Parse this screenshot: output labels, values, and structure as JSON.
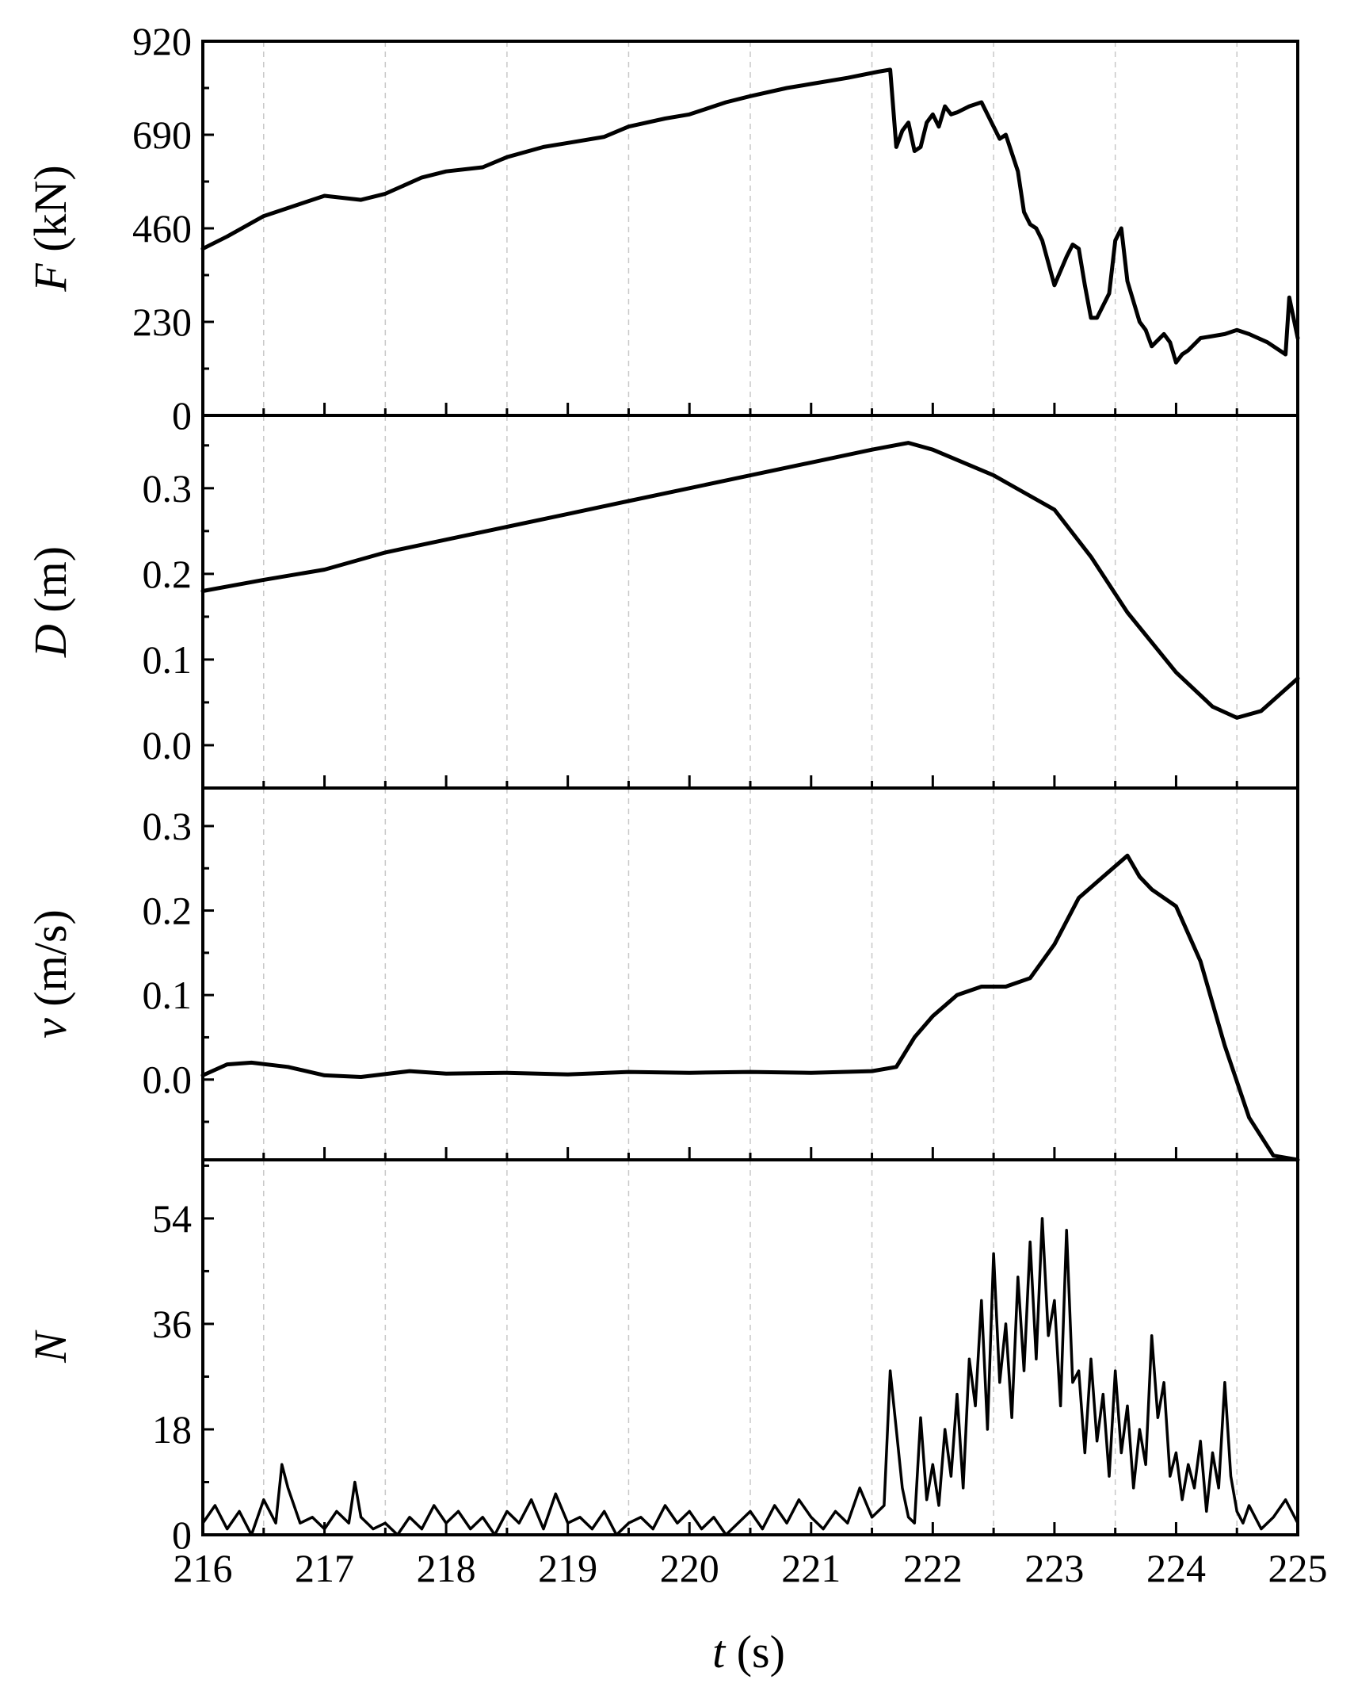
{
  "chart_data": {
    "type": "line",
    "layout": "stacked panels with shared x axis",
    "xlabel": {
      "symbol": "t",
      "unit": " (s)"
    },
    "xlim": [
      216,
      225
    ],
    "xticks": [
      "216",
      "217",
      "218",
      "219",
      "220",
      "221",
      "222",
      "223",
      "224",
      "225"
    ],
    "grid": "vertical dashed lines at half-second intervals",
    "line_color": "#000000",
    "panels": [
      {
        "id": "force",
        "ylabel": {
          "symbol": "F",
          "unit": " (kN)"
        },
        "ylim": [
          0,
          920
        ],
        "yticks": [
          "0",
          "230",
          "460",
          "690",
          "920"
        ],
        "series": [
          {
            "x": [
              216.0,
              216.2,
              216.5,
              216.8,
              217.0,
              217.3,
              217.5,
              217.8,
              218.0,
              218.3,
              218.5,
              218.8,
              219.0,
              219.3,
              219.5,
              219.8,
              220.0,
              220.3,
              220.5,
              220.8,
              221.0,
              221.3,
              221.55,
              221.65,
              221.7,
              221.75,
              221.8,
              221.85,
              221.9,
              221.95,
              222.0,
              222.05,
              222.1,
              222.15,
              222.2,
              222.3,
              222.4,
              222.5,
              222.55,
              222.6,
              222.7,
              222.75,
              222.8,
              222.85,
              222.9,
              223.0,
              223.1,
              223.15,
              223.2,
              223.25,
              223.3,
              223.35,
              223.45,
              223.5,
              223.55,
              223.6,
              223.7,
              223.75,
              223.8,
              223.9,
              223.95,
              224.0,
              224.05,
              224.1,
              224.2,
              224.3,
              224.4,
              224.5,
              224.6,
              224.75,
              224.9,
              224.93,
              225.0
            ],
            "y": [
              410,
              440,
              490,
              520,
              540,
              530,
              545,
              585,
              600,
              610,
              635,
              660,
              670,
              685,
              710,
              730,
              740,
              770,
              785,
              805,
              815,
              830,
              845,
              850,
              660,
              700,
              720,
              650,
              660,
              720,
              740,
              710,
              760,
              740,
              745,
              760,
              770,
              710,
              680,
              690,
              600,
              500,
              470,
              460,
              430,
              320,
              390,
              420,
              410,
              320,
              240,
              240,
              300,
              430,
              460,
              330,
              230,
              210,
              170,
              200,
              180,
              130,
              150,
              160,
              190,
              195,
              200,
              210,
              200,
              180,
              150,
              290,
              190
            ]
          }
        ]
      },
      {
        "id": "displacement",
        "ylabel": {
          "symbol": "D",
          "unit": " (m)"
        },
        "ylim": [
          -0.05,
          0.385
        ],
        "yticks": [
          "0.0",
          "0.1",
          "0.2",
          "0.3"
        ],
        "series": [
          {
            "x": [
              216.0,
              216.5,
              217.0,
              217.5,
              218.0,
              218.5,
              219.0,
              219.5,
              220.0,
              220.5,
              221.0,
              221.5,
              221.8,
              222.0,
              222.5,
              223.0,
              223.3,
              223.6,
              224.0,
              224.3,
              224.5,
              224.7,
              225.0
            ],
            "y": [
              0.18,
              0.193,
              0.205,
              0.225,
              0.24,
              0.255,
              0.27,
              0.285,
              0.3,
              0.315,
              0.33,
              0.345,
              0.353,
              0.345,
              0.315,
              0.275,
              0.22,
              0.155,
              0.085,
              0.045,
              0.032,
              0.04,
              0.078
            ]
          }
        ]
      },
      {
        "id": "velocity",
        "ylabel": {
          "symbol": "v",
          "unit": " (m/s)"
        },
        "ylim": [
          -0.095,
          0.345
        ],
        "yticks": [
          "0.0",
          "0.1",
          "0.2",
          "0.3"
        ],
        "series": [
          {
            "x": [
              216.0,
              216.2,
              216.4,
              216.7,
              217.0,
              217.3,
              217.7,
              218.0,
              218.5,
              219.0,
              219.5,
              220.0,
              220.5,
              221.0,
              221.5,
              221.7,
              221.85,
              222.0,
              222.2,
              222.4,
              222.6,
              222.8,
              223.0,
              223.2,
              223.4,
              223.6,
              223.7,
              223.8,
              224.0,
              224.2,
              224.4,
              224.6,
              224.8,
              225.0
            ],
            "y": [
              0.005,
              0.018,
              0.02,
              0.015,
              0.005,
              0.003,
              0.01,
              0.007,
              0.008,
              0.006,
              0.009,
              0.008,
              0.009,
              0.008,
              0.01,
              0.015,
              0.05,
              0.075,
              0.1,
              0.11,
              0.11,
              0.12,
              0.16,
              0.215,
              0.24,
              0.265,
              0.24,
              0.225,
              0.205,
              0.14,
              0.04,
              -0.045,
              -0.09,
              -0.095
            ]
          }
        ]
      },
      {
        "id": "count",
        "ylabel": {
          "symbol": "N",
          "unit": ""
        },
        "ylim": [
          0,
          64
        ],
        "yticks": [
          "0",
          "18",
          "36",
          "54"
        ],
        "series": [
          {
            "x": [
              216.0,
              216.1,
              216.2,
              216.3,
              216.4,
              216.5,
              216.6,
              216.65,
              216.7,
              216.8,
              216.9,
              217.0,
              217.1,
              217.2,
              217.25,
              217.3,
              217.4,
              217.5,
              217.6,
              217.7,
              217.8,
              217.9,
              218.0,
              218.1,
              218.2,
              218.3,
              218.4,
              218.5,
              218.6,
              218.7,
              218.8,
              218.9,
              219.0,
              219.1,
              219.2,
              219.3,
              219.4,
              219.5,
              219.6,
              219.7,
              219.8,
              219.9,
              220.0,
              220.1,
              220.2,
              220.3,
              220.4,
              220.5,
              220.6,
              220.7,
              220.8,
              220.9,
              221.0,
              221.1,
              221.2,
              221.3,
              221.4,
              221.5,
              221.6,
              221.65,
              221.7,
              221.75,
              221.8,
              221.85,
              221.9,
              221.95,
              222.0,
              222.05,
              222.1,
              222.15,
              222.2,
              222.25,
              222.3,
              222.35,
              222.4,
              222.45,
              222.5,
              222.55,
              222.6,
              222.65,
              222.7,
              222.75,
              222.8,
              222.85,
              222.9,
              222.95,
              223.0,
              223.05,
              223.1,
              223.15,
              223.2,
              223.25,
              223.3,
              223.35,
              223.4,
              223.45,
              223.5,
              223.55,
              223.6,
              223.65,
              223.7,
              223.75,
              223.8,
              223.85,
              223.9,
              223.95,
              224.0,
              224.05,
              224.1,
              224.15,
              224.2,
              224.25,
              224.3,
              224.35,
              224.4,
              224.45,
              224.5,
              224.55,
              224.6,
              224.7,
              224.8,
              224.9,
              225.0
            ],
            "y": [
              2,
              5,
              1,
              4,
              0,
              6,
              2,
              12,
              8,
              2,
              3,
              1,
              4,
              2,
              9,
              3,
              1,
              2,
              0,
              3,
              1,
              5,
              2,
              4,
              1,
              3,
              0,
              4,
              2,
              6,
              1,
              7,
              2,
              3,
              1,
              4,
              0,
              2,
              3,
              1,
              5,
              2,
              4,
              1,
              3,
              0,
              2,
              4,
              1,
              5,
              2,
              6,
              3,
              1,
              4,
              2,
              8,
              3,
              5,
              28,
              18,
              8,
              3,
              2,
              20,
              6,
              12,
              5,
              18,
              10,
              24,
              8,
              30,
              22,
              40,
              18,
              48,
              26,
              36,
              20,
              44,
              28,
              50,
              30,
              54,
              34,
              40,
              22,
              52,
              26,
              28,
              14,
              30,
              16,
              24,
              10,
              28,
              14,
              22,
              8,
              18,
              12,
              34,
              20,
              26,
              10,
              14,
              6,
              12,
              8,
              16,
              4,
              14,
              8,
              26,
              10,
              4,
              2,
              5,
              1,
              3,
              6,
              2
            ]
          }
        ]
      }
    ]
  }
}
